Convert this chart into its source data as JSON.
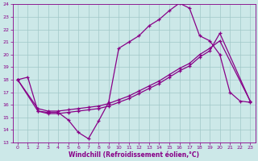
{
  "xlabel": "Windchill (Refroidissement éolien,°C)",
  "xlim": [
    -0.5,
    23.5
  ],
  "ylim": [
    13,
    24
  ],
  "yticks": [
    13,
    14,
    15,
    16,
    17,
    18,
    19,
    20,
    21,
    22,
    23,
    24
  ],
  "xticks": [
    0,
    1,
    2,
    3,
    4,
    5,
    6,
    7,
    8,
    9,
    10,
    11,
    12,
    13,
    14,
    15,
    16,
    17,
    18,
    19,
    20,
    21,
    22,
    23
  ],
  "bg_color": "#cce8e8",
  "line_color": "#880088",
  "grid_color": "#a0c8c8",
  "line1_x": [
    0,
    1,
    2,
    3,
    4,
    5,
    6,
    7,
    8,
    9,
    10,
    11,
    12,
    13,
    14,
    15,
    16,
    17,
    18,
    19,
    20,
    21,
    22,
    23
  ],
  "line1_y": [
    18.0,
    18.2,
    15.5,
    15.4,
    15.4,
    14.8,
    13.8,
    13.3,
    14.7,
    16.2,
    20.5,
    21.0,
    21.5,
    22.3,
    22.8,
    23.5,
    24.1,
    23.7,
    21.5,
    21.1,
    20.0,
    17.0,
    16.3,
    16.2
  ],
  "line2_x": [
    0,
    2,
    3,
    4,
    5,
    6,
    7,
    8,
    9,
    10,
    11,
    12,
    13,
    14,
    15,
    16,
    17,
    18,
    19,
    20,
    23
  ],
  "line2_y": [
    18.0,
    15.7,
    15.5,
    15.5,
    15.6,
    15.7,
    15.8,
    15.9,
    16.1,
    16.4,
    16.7,
    17.1,
    17.5,
    17.9,
    18.4,
    18.9,
    19.3,
    20.0,
    20.5,
    21.1,
    16.3
  ],
  "line3_x": [
    0,
    2,
    3,
    4,
    5,
    6,
    7,
    8,
    9,
    10,
    11,
    12,
    13,
    14,
    15,
    16,
    17,
    18,
    19,
    20,
    23
  ],
  "line3_y": [
    18.0,
    15.5,
    15.3,
    15.3,
    15.4,
    15.5,
    15.6,
    15.7,
    15.9,
    16.2,
    16.5,
    16.9,
    17.3,
    17.7,
    18.2,
    18.7,
    19.1,
    19.8,
    20.3,
    21.7,
    16.3
  ]
}
